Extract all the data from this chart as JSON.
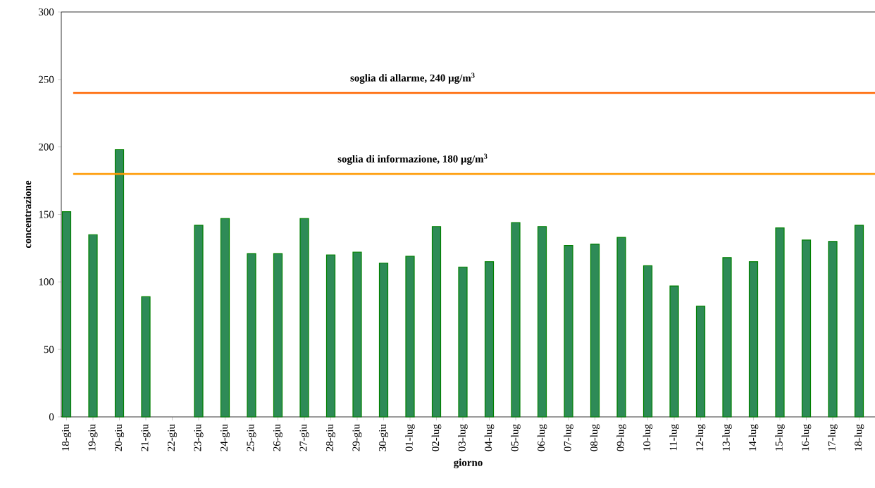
{
  "chart_data": {
    "type": "bar",
    "xlabel": "giorno",
    "ylabel": "concentrazione",
    "categories": [
      "18-giu",
      "19-giu",
      "20-giu",
      "21-giu",
      "22-giu",
      "23-giu",
      "24-giu",
      "25-giu",
      "26-giu",
      "27-giu",
      "28-giu",
      "29-giu",
      "30-giu",
      "01-lug",
      "02-lug",
      "03-lug",
      "04-lug",
      "05-lug",
      "06-lug",
      "07-lug",
      "08-lug",
      "09-lug",
      "10-lug",
      "11-lug",
      "12-lug",
      "13-lug",
      "14-lug",
      "15-lug",
      "16-lug",
      "17-lug",
      "18-lug"
    ],
    "values": [
      152,
      135,
      198,
      89,
      null,
      142,
      147,
      121,
      121,
      147,
      120,
      122,
      114,
      119,
      141,
      111,
      115,
      144,
      141,
      127,
      128,
      133,
      112,
      97,
      82,
      118,
      115,
      140,
      131,
      130,
      142
    ],
    "color": "#2e8b57",
    "ylim": [
      0,
      300
    ],
    "yticks": [
      0,
      50,
      100,
      150,
      200,
      250,
      300
    ],
    "ref_lines": [
      {
        "axis": "y",
        "value": 240,
        "label": "soglia di allarme, 240 µg/m$^{3}$",
        "color": "#ff6600"
      },
      {
        "axis": "y",
        "value": 180,
        "label": "soglia di informazione, 180 µg/m$^{3}$",
        "color": "#ff9900"
      }
    ],
    "grid": false
  }
}
